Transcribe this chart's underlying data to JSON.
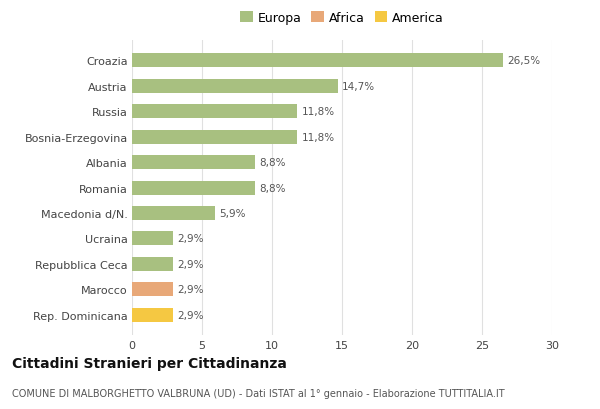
{
  "categories": [
    "Rep. Dominicana",
    "Marocco",
    "Repubblica Ceca",
    "Ucraina",
    "Macedonia d/N.",
    "Romania",
    "Albania",
    "Bosnia-Erzegovina",
    "Russia",
    "Austria",
    "Croazia"
  ],
  "values": [
    2.9,
    2.9,
    2.9,
    2.9,
    5.9,
    8.8,
    8.8,
    11.8,
    11.8,
    14.7,
    26.5
  ],
  "labels": [
    "2,9%",
    "2,9%",
    "2,9%",
    "2,9%",
    "5,9%",
    "8,8%",
    "8,8%",
    "11,8%",
    "11,8%",
    "14,7%",
    "26,5%"
  ],
  "colors": [
    "#F5C842",
    "#E8A878",
    "#A8C080",
    "#A8C080",
    "#A8C080",
    "#A8C080",
    "#A8C080",
    "#A8C080",
    "#A8C080",
    "#A8C080",
    "#A8C080"
  ],
  "legend": [
    {
      "label": "Europa",
      "color": "#A8C080"
    },
    {
      "label": "Africa",
      "color": "#E8A878"
    },
    {
      "label": "America",
      "color": "#F5C842"
    }
  ],
  "title": "Cittadini Stranieri per Cittadinanza",
  "subtitle": "COMUNE DI MALBORGHETTO VALBRUNA (UD) - Dati ISTAT al 1° gennaio - Elaborazione TUTTITALIA.IT",
  "xlim": [
    0,
    30
  ],
  "xticks": [
    0,
    5,
    10,
    15,
    20,
    25,
    30
  ],
  "background_color": "#ffffff",
  "grid_color": "#e0e0e0",
  "bar_height": 0.55,
  "title_fontsize": 10,
  "subtitle_fontsize": 7,
  "label_fontsize": 7.5,
  "tick_fontsize": 8,
  "legend_fontsize": 9
}
